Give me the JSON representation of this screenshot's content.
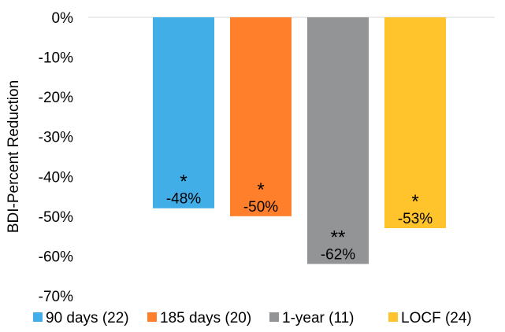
{
  "chart_data": {
    "type": "bar",
    "title": "",
    "xlabel": "",
    "ylabel": "BDI-Percent Reduction",
    "ylim": [
      -70,
      0
    ],
    "ytick_step": 10,
    "ytick_format": "percent",
    "grid": false,
    "legend_position": "bottom",
    "categories": [
      "90 days (22)",
      "185 days (20)",
      "1-year (11)",
      "LOCF (24)"
    ],
    "series": [
      {
        "name": "90 days (22)",
        "value": -48,
        "label": "-48%",
        "significance": "*",
        "color": "#41AEE8"
      },
      {
        "name": "185 days (20)",
        "value": -50,
        "label": "-50%",
        "significance": "*",
        "color": "#FF7F2A"
      },
      {
        "name": "1-year (11)",
        "value": -62,
        "label": "-62%",
        "significance": "**",
        "color": "#929496"
      },
      {
        "name": "LOCF (24)",
        "value": -53,
        "label": "-53%",
        "significance": "*",
        "color": "#FFC32B"
      }
    ]
  }
}
